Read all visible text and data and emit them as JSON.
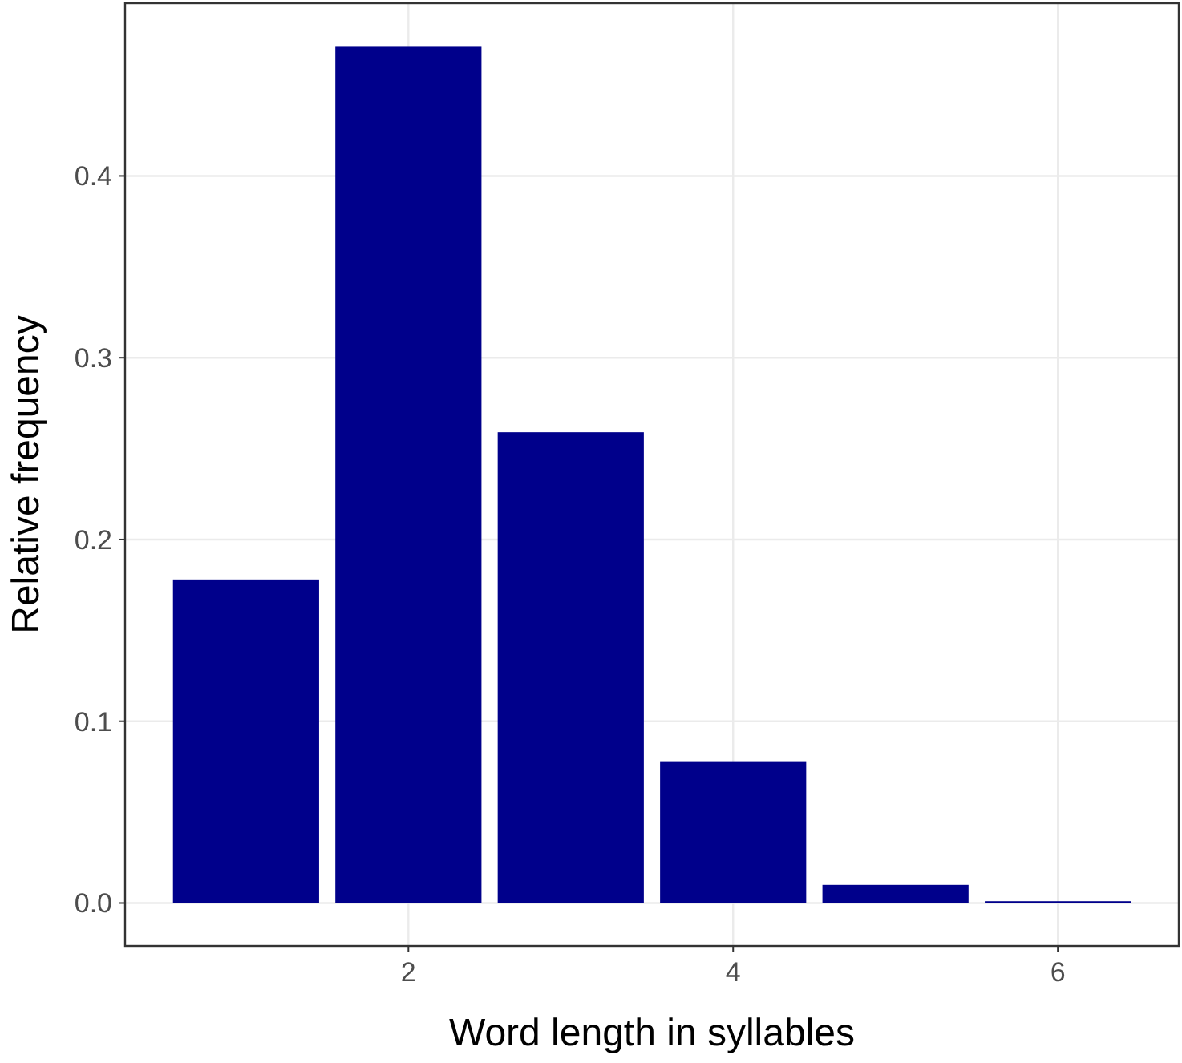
{
  "chart_data": {
    "type": "bar",
    "xlabel": "Word length in syllables",
    "ylabel": "Relative frequency",
    "x": [
      1,
      2,
      3,
      4,
      5,
      6
    ],
    "values": [
      0.178,
      0.471,
      0.259,
      0.078,
      0.01,
      0.001
    ],
    "color": "#00008b",
    "xlim": [
      0.255,
      6.745
    ],
    "xticks": [
      2,
      4,
      6
    ],
    "ylim": [
      -0.0236,
      0.495
    ],
    "yticks": [
      {
        "value": 0,
        "label": "0.0"
      },
      {
        "value": 0.1,
        "label": "0.1"
      },
      {
        "value": 0.2,
        "label": "0.2"
      },
      {
        "value": 0.3,
        "label": "0.3"
      },
      {
        "value": 0.4,
        "label": "0.4"
      }
    ],
    "grid": true
  }
}
